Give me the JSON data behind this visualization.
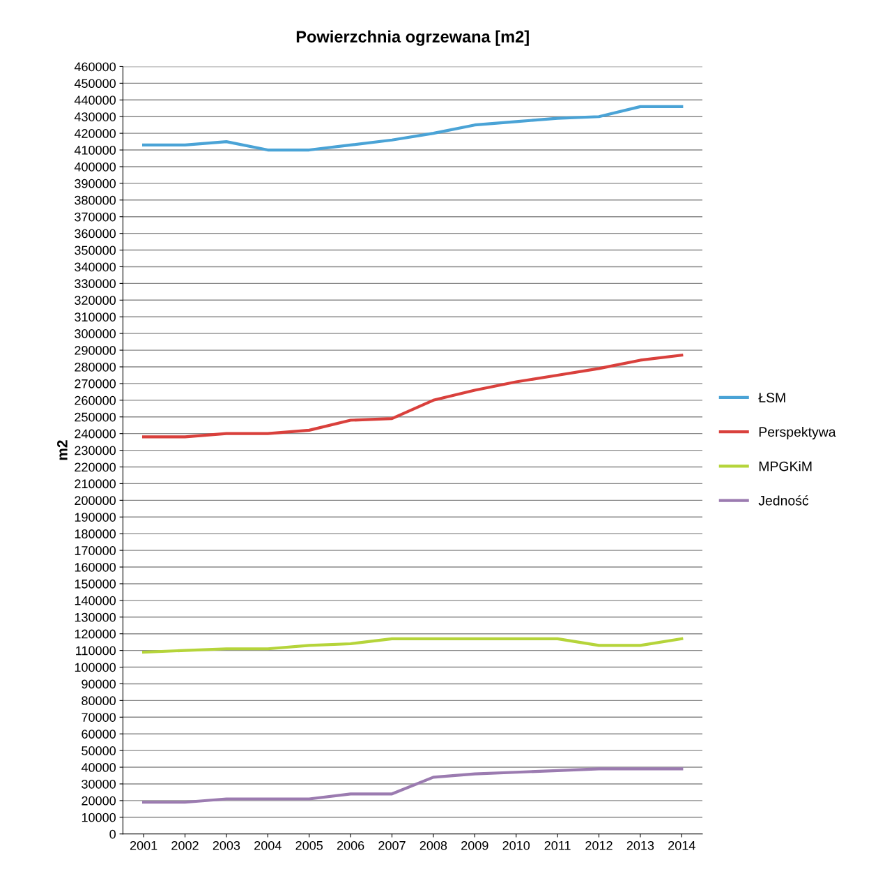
{
  "chart_data": {
    "type": "line",
    "title": "Powierzchnia ogrzewana [m2]",
    "ylabel": "m2",
    "categories": [
      "2001",
      "2002",
      "2003",
      "2004",
      "2005",
      "2006",
      "2007",
      "2008",
      "2009",
      "2010",
      "2011",
      "2012",
      "2013",
      "2014"
    ],
    "series": [
      {
        "name": "ŁSM",
        "color": "#4aa3d6",
        "values": [
          413000,
          413000,
          415000,
          410000,
          410000,
          413000,
          416000,
          420000,
          425000,
          427000,
          429000,
          430000,
          436000,
          436000
        ]
      },
      {
        "name": "Perspektywa",
        "color": "#d9403c",
        "values": [
          238000,
          238000,
          240000,
          240000,
          242000,
          248000,
          249000,
          260000,
          266000,
          271000,
          275000,
          279000,
          284000,
          287000
        ]
      },
      {
        "name": "MPGKiM",
        "color": "#b5d43a",
        "values": [
          109000,
          110000,
          111000,
          111000,
          113000,
          114000,
          117000,
          117000,
          117000,
          117000,
          117000,
          113000,
          113000,
          117000
        ]
      },
      {
        "name": "Jedność",
        "color": "#9b7bb0",
        "values": [
          19000,
          19000,
          21000,
          21000,
          21000,
          24000,
          24000,
          34000,
          36000,
          37000,
          38000,
          39000,
          39000,
          39000
        ]
      }
    ],
    "ylim": [
      0,
      460000
    ],
    "yticks": [
      0,
      10000,
      20000,
      30000,
      40000,
      50000,
      60000,
      70000,
      80000,
      90000,
      100000,
      110000,
      120000,
      130000,
      140000,
      150000,
      160000,
      170000,
      180000,
      190000,
      200000,
      210000,
      220000,
      230000,
      240000,
      250000,
      260000,
      270000,
      280000,
      290000,
      300000,
      310000,
      320000,
      330000,
      340000,
      350000,
      360000,
      370000,
      380000,
      390000,
      400000,
      410000,
      420000,
      430000,
      440000,
      450000,
      460000
    ],
    "grid": "y",
    "legend": "right",
    "marker": "none",
    "line_style": "solid"
  }
}
